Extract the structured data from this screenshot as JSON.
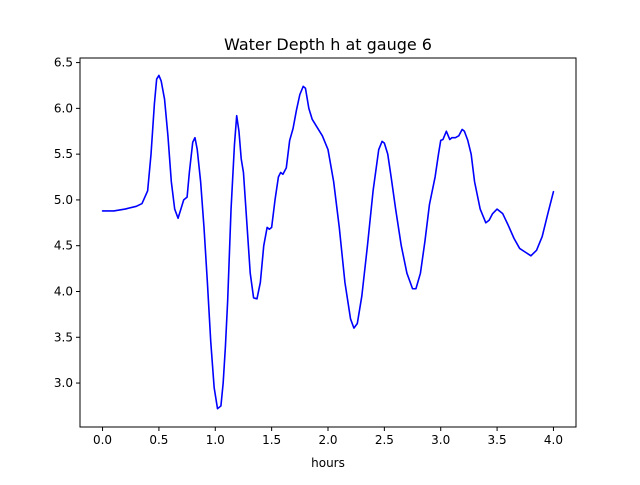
{
  "chart_data": {
    "type": "line",
    "title": "Water Depth h at gauge 6",
    "xlabel": "hours",
    "ylabel": "",
    "xlim": [
      -0.2,
      4.2
    ],
    "ylim": [
      2.52,
      6.55
    ],
    "xticks": [
      0.0,
      0.5,
      1.0,
      1.5,
      2.0,
      2.5,
      3.0,
      3.5,
      4.0
    ],
    "xtick_labels": [
      "0.0",
      "0.5",
      "1.0",
      "1.5",
      "2.0",
      "2.5",
      "3.0",
      "3.5",
      "4.0"
    ],
    "yticks": [
      3.0,
      3.5,
      4.0,
      4.5,
      5.0,
      5.5,
      6.0,
      6.5
    ],
    "ytick_labels": [
      "3.0",
      "3.5",
      "4.0",
      "4.5",
      "5.0",
      "5.5",
      "6.0",
      "6.5"
    ],
    "grid": false,
    "legend": "none",
    "series": [
      {
        "color": "#0000ff",
        "x": [
          0.0,
          0.1,
          0.2,
          0.3,
          0.35,
          0.4,
          0.43,
          0.46,
          0.48,
          0.5,
          0.52,
          0.55,
          0.58,
          0.61,
          0.64,
          0.67,
          0.7,
          0.72,
          0.75,
          0.77,
          0.8,
          0.82,
          0.84,
          0.87,
          0.9,
          0.93,
          0.96,
          0.99,
          1.02,
          1.05,
          1.07,
          1.09,
          1.11,
          1.14,
          1.17,
          1.19,
          1.21,
          1.23,
          1.25,
          1.28,
          1.31,
          1.34,
          1.37,
          1.4,
          1.43,
          1.46,
          1.48,
          1.5,
          1.53,
          1.56,
          1.58,
          1.6,
          1.63,
          1.66,
          1.69,
          1.72,
          1.75,
          1.78,
          1.8,
          1.83,
          1.86,
          1.9,
          1.95,
          2.0,
          2.05,
          2.1,
          2.15,
          2.2,
          2.23,
          2.26,
          2.3,
          2.35,
          2.4,
          2.45,
          2.48,
          2.5,
          2.53,
          2.56,
          2.6,
          2.65,
          2.7,
          2.75,
          2.78,
          2.82,
          2.86,
          2.9,
          2.95,
          2.98,
          3.0,
          3.02,
          3.05,
          3.08,
          3.1,
          3.13,
          3.16,
          3.19,
          3.21,
          3.24,
          3.27,
          3.3,
          3.35,
          3.4,
          3.43,
          3.46,
          3.5,
          3.55,
          3.6,
          3.65,
          3.7,
          3.75,
          3.8,
          3.85,
          3.9,
          3.95,
          4.0
        ],
        "y": [
          4.88,
          4.88,
          4.9,
          4.93,
          4.96,
          5.1,
          5.5,
          6.05,
          6.32,
          6.36,
          6.3,
          6.1,
          5.7,
          5.2,
          4.9,
          4.8,
          4.92,
          5.0,
          5.03,
          5.3,
          5.63,
          5.68,
          5.55,
          5.2,
          4.7,
          4.1,
          3.45,
          2.95,
          2.72,
          2.75,
          3.0,
          3.4,
          3.9,
          4.9,
          5.6,
          5.92,
          5.75,
          5.45,
          5.3,
          4.75,
          4.2,
          3.93,
          3.92,
          4.1,
          4.5,
          4.7,
          4.68,
          4.7,
          5.0,
          5.25,
          5.3,
          5.28,
          5.35,
          5.65,
          5.78,
          5.98,
          6.15,
          6.24,
          6.22,
          6.0,
          5.88,
          5.8,
          5.7,
          5.55,
          5.2,
          4.7,
          4.1,
          3.7,
          3.6,
          3.65,
          3.95,
          4.5,
          5.1,
          5.55,
          5.64,
          5.62,
          5.5,
          5.25,
          4.9,
          4.5,
          4.2,
          4.03,
          4.03,
          4.2,
          4.55,
          4.95,
          5.25,
          5.5,
          5.65,
          5.66,
          5.75,
          5.66,
          5.68,
          5.68,
          5.7,
          5.77,
          5.75,
          5.65,
          5.5,
          5.2,
          4.9,
          4.75,
          4.78,
          4.85,
          4.9,
          4.85,
          4.72,
          4.58,
          4.47,
          4.43,
          4.39,
          4.45,
          4.6,
          4.85,
          5.09
        ]
      }
    ]
  }
}
